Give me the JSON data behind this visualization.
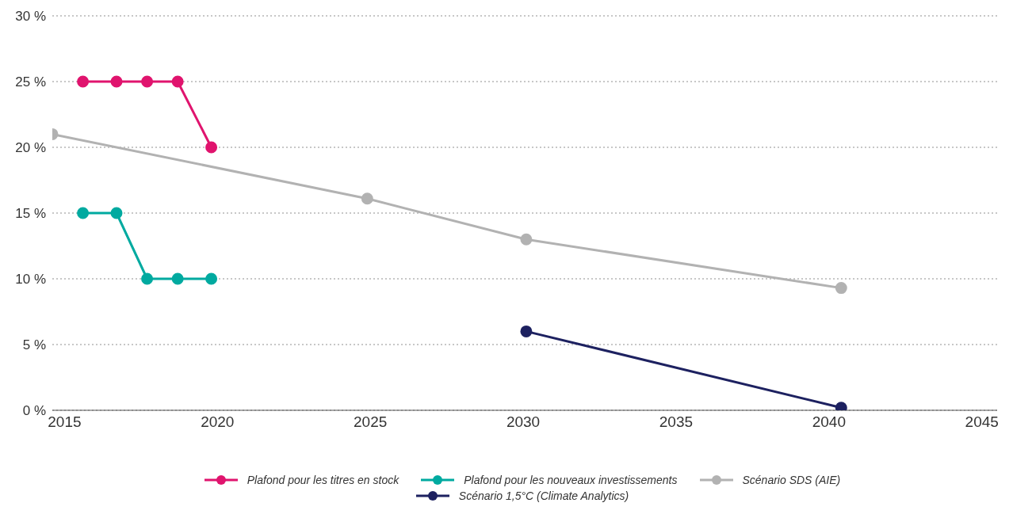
{
  "chart_data": {
    "type": "line",
    "xlim": [
      2014.6,
      2045.5
    ],
    "xticks": [
      2015,
      2020,
      2025,
      2030,
      2035,
      2040,
      2045
    ],
    "ylim": [
      0,
      30
    ],
    "yticks": [
      {
        "value": 0,
        "label": "0 %"
      },
      {
        "value": 5,
        "label": "5 %"
      },
      {
        "value": 10,
        "label": "10 %"
      },
      {
        "value": 15,
        "label": "15 %"
      },
      {
        "value": 20,
        "label": "20 %"
      },
      {
        "value": 25,
        "label": "25 %"
      },
      {
        "value": 30,
        "label": "30 %"
      }
    ],
    "grid": "y",
    "legend": "bottom",
    "marker": "circle",
    "line_style": "solid",
    "series": [
      {
        "name": "Plafond pour les titres en stock",
        "color": "#e0146e",
        "x": [
          2015.6,
          2016.7,
          2017.7,
          2018.7,
          2019.8
        ],
        "values": [
          25,
          25,
          25,
          25,
          20
        ]
      },
      {
        "name": "Plafond pour les nouveaux investissements",
        "color": "#00aaa0",
        "x": [
          2015.6,
          2016.7,
          2017.7,
          2018.7,
          2019.8
        ],
        "values": [
          15,
          15,
          10,
          10,
          10
        ]
      },
      {
        "name": "Scénario SDS (AIE)",
        "color": "#b2b2b2",
        "x": [
          2014.6,
          2024.9,
          2030.1,
          2040.4
        ],
        "values": [
          21,
          16.1,
          13,
          9.3
        ]
      },
      {
        "name": "Scénario 1,5°C (Climate Analytics)",
        "color": "#1d2160",
        "x": [
          2030.1,
          2040.4
        ],
        "values": [
          6,
          0.2
        ]
      }
    ]
  }
}
